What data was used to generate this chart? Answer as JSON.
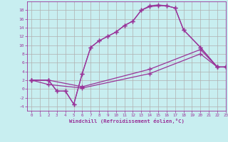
{
  "xlabel": "Windchill (Refroidissement éolien,°C)",
  "bg_color": "#c8eef0",
  "line_color": "#993399",
  "grid_color": "#b0b0b0",
  "xlim": [
    -0.5,
    23
  ],
  "ylim": [
    -5,
    20
  ],
  "yticks": [
    -4,
    -2,
    0,
    2,
    4,
    6,
    8,
    10,
    12,
    14,
    16,
    18
  ],
  "xticks": [
    0,
    1,
    2,
    3,
    4,
    5,
    6,
    7,
    8,
    9,
    10,
    11,
    12,
    13,
    14,
    15,
    16,
    17,
    18,
    19,
    20,
    21,
    22,
    23
  ],
  "series": [
    {
      "x": [
        0,
        2,
        3,
        4,
        5,
        6,
        7,
        8,
        9,
        10,
        11,
        12,
        13,
        14,
        15,
        16,
        17,
        18,
        20,
        22,
        23
      ],
      "y": [
        2,
        2,
        -0.5,
        -0.5,
        -3.5,
        3.5,
        9.5,
        11,
        12,
        13,
        14.5,
        15.5,
        18,
        19,
        19.2,
        19,
        18.5,
        13.5,
        9.5,
        5,
        5
      ]
    },
    {
      "x": [
        0,
        2,
        3,
        4,
        5,
        6,
        7,
        8,
        9,
        10,
        11,
        12,
        13,
        14,
        15,
        16,
        17,
        18,
        20,
        22,
        23
      ],
      "y": [
        2,
        2,
        -0.5,
        -0.5,
        -3.5,
        3.5,
        9.5,
        11,
        12,
        13,
        14.5,
        15.5,
        18,
        18.8,
        19,
        19,
        18.5,
        13.5,
        9.5,
        5,
        5
      ]
    },
    {
      "x": [
        0,
        2,
        6,
        14,
        20,
        22,
        23
      ],
      "y": [
        2,
        2,
        0.5,
        4.5,
        9,
        5,
        5
      ]
    },
    {
      "x": [
        0,
        2,
        6,
        14,
        20,
        22,
        23
      ],
      "y": [
        2,
        1,
        0.2,
        3.5,
        8,
        5,
        5
      ]
    }
  ]
}
